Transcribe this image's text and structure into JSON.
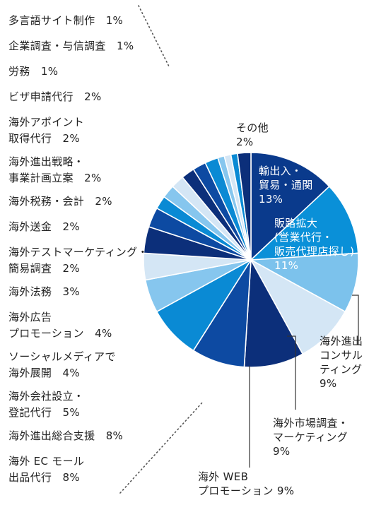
{
  "chart_data": {
    "type": "pie",
    "title": "",
    "legend_position": "left",
    "slices": [
      {
        "label": [
          "輸出入・",
          "貿易・通関"
        ],
        "value": 13,
        "pct": "13%",
        "color": "#0a3a8c"
      },
      {
        "label": [
          "販路拡大",
          "(営業代行・",
          "販売代理店探し)"
        ],
        "value": 11,
        "pct": "11%",
        "color": "#0a90d8"
      },
      {
        "label": [
          "海外進出",
          "コンサル",
          "ティング"
        ],
        "value": 9,
        "pct": "9%",
        "color": "#7cc2ec"
      },
      {
        "label": [
          "海外市場調査・",
          "マーケティング"
        ],
        "value": 9,
        "pct": "9%",
        "color": "#d4e6f5"
      },
      {
        "label": [
          "海外 WEB",
          "プロモーション 9%"
        ],
        "value": 9,
        "pct": "",
        "color": "#0c2f7a"
      },
      {
        "label": [
          "海外 EC モール",
          "出品代行　8%"
        ],
        "value": 8,
        "pct": "",
        "color": "#0d4aa2"
      },
      {
        "label": [
          "海外進出総合支援　8%"
        ],
        "value": 8,
        "pct": "",
        "color": "#0a8ad4"
      },
      {
        "label": [
          "海外会社設立・",
          "登記代行　5%"
        ],
        "value": 5,
        "pct": "",
        "color": "#86c6ee"
      },
      {
        "label": [
          "ソーシャルメディアで",
          "海外展開　4%"
        ],
        "value": 4,
        "pct": "",
        "color": "#d4e6f5"
      },
      {
        "label": [
          "海外広告",
          "プロモーション　4%"
        ],
        "value": 4,
        "pct": "",
        "color": "#0c2f7a"
      },
      {
        "label": [
          "海外法務　3%"
        ],
        "value": 3,
        "pct": "",
        "color": "#0d4aa2"
      },
      {
        "label": [
          "海外テストマーケティング・",
          "簡易調査　2%"
        ],
        "value": 2,
        "pct": "",
        "color": "#0a8ad4"
      },
      {
        "label": [
          "海外送金　2%"
        ],
        "value": 2,
        "pct": "",
        "color": "#86c6ee"
      },
      {
        "label": [
          "海外税務・会計　2%"
        ],
        "value": 2,
        "pct": "",
        "color": "#d4e6f5"
      },
      {
        "label": [
          "海外進出戦略・",
          "事業計画立案　2%"
        ],
        "value": 2,
        "pct": "",
        "color": "#0c2f7a"
      },
      {
        "label": [
          "海外アポイント",
          "取得代行　2%"
        ],
        "value": 2,
        "pct": "",
        "color": "#0d4aa2"
      },
      {
        "label": [
          "ビザ申請代行　2%"
        ],
        "value": 2,
        "pct": "",
        "color": "#0a8ad4"
      },
      {
        "label": [
          "労務　1%"
        ],
        "value": 1,
        "pct": "",
        "color": "#86c6ee"
      },
      {
        "label": [
          "企業調査・与信調査　1%"
        ],
        "value": 1,
        "pct": "",
        "color": "#d4e6f5"
      },
      {
        "label": [
          "多言語サイト制作　1%"
        ],
        "value": 1,
        "pct": "",
        "color": "#0a8ad4"
      },
      {
        "label": [
          "その他"
        ],
        "value": 2,
        "pct": "2%",
        "color": "#0c2f7a"
      }
    ]
  }
}
